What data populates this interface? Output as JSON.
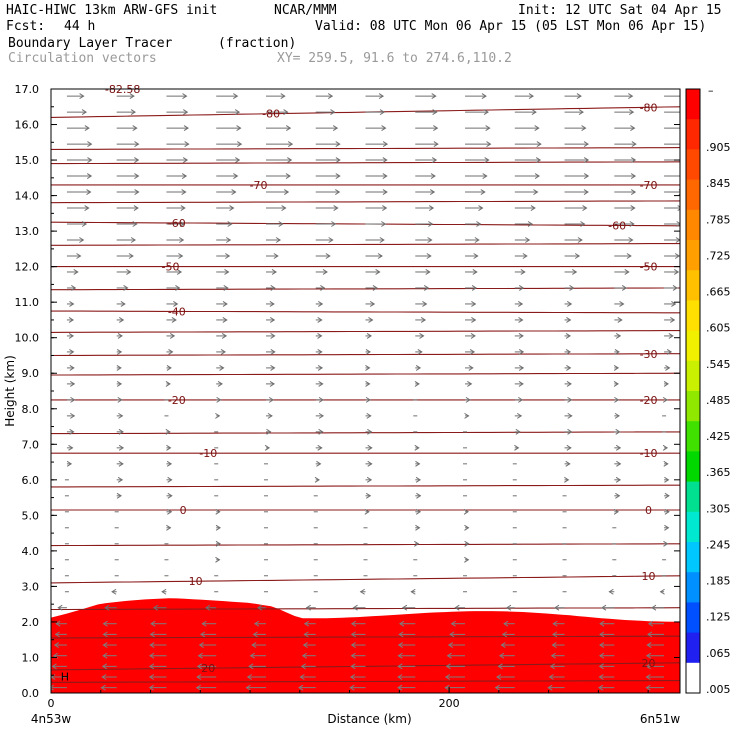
{
  "header": {
    "model": "HAIC-HIWC 13km ARW-GFS init",
    "center": "NCAR/MMM",
    "init": "Init: 12 UTC Sat 04 Apr 15",
    "fcst_label": "Fcst:",
    "fcst_value": "44 h",
    "valid": "Valid: 08 UTC Mon 06 Apr 15 (05 LST Mon 06 Apr 15)",
    "field": "Boundary Layer Tracer",
    "field_units": "(fraction)",
    "vectors": "Circulation vectors",
    "xy": "XY= 259.5, 91.6 to 274.6,110.2"
  },
  "chart_data": {
    "type": "heatmap",
    "xlabel": "Distance (km)",
    "ylabel": "Height (km)",
    "xlim": [
      0,
      316
    ],
    "ylim": [
      0,
      17
    ],
    "x_ticks": [
      {
        "v": 0,
        "label": "0"
      },
      {
        "v": 200,
        "label": "200"
      }
    ],
    "x_end_labels": [
      "4n53w",
      "6n51w"
    ],
    "y_ticks": [
      "0.0",
      "1.0",
      "2.0",
      "3.0",
      "4.0",
      "5.0",
      "6.0",
      "7.0",
      "8.0",
      "9.0",
      "10.0",
      "11.0",
      "12.0",
      "13.0",
      "14.0",
      "15.0",
      "16.0",
      "17.0"
    ],
    "tracer_top_km": [
      [
        0,
        2.15
      ],
      [
        10,
        2.25
      ],
      [
        25,
        2.45
      ],
      [
        60,
        2.6
      ],
      [
        100,
        2.62
      ],
      [
        112,
        2.55
      ],
      [
        125,
        2.25
      ],
      [
        160,
        2.25
      ],
      [
        200,
        2.22
      ],
      [
        260,
        2.2
      ],
      [
        316,
        2.15
      ]
    ],
    "tracer_colors": [
      "#ff0000",
      "#ff3a00",
      "#ff7a00",
      "#ffb800",
      "#fff000",
      "#a8f000",
      "#00e000",
      "#00e8b0",
      "#00b0ff",
      "#0050ff",
      "#2020f0"
    ],
    "temperature_contours": [
      {
        "label": "-80",
        "y": [
          16.2,
          16.5
        ]
      },
      {
        "label": "-70",
        "y": [
          14.3,
          14.3
        ]
      },
      {
        "label": "-60",
        "y": [
          13.25,
          13.15
        ]
      },
      {
        "label": "-50",
        "y": [
          12.0,
          12.0
        ]
      },
      {
        "label": "-40",
        "y": [
          10.75,
          10.7
        ]
      },
      {
        "label": "-30",
        "y": [
          9.5,
          9.55
        ]
      },
      {
        "label": "-20",
        "y": [
          8.25,
          8.25
        ]
      },
      {
        "label": "-10",
        "y": [
          6.75,
          6.75
        ]
      },
      {
        "label": "0",
        "y": [
          5.15,
          5.15
        ]
      },
      {
        "label": "10",
        "y": [
          3.1,
          3.3
        ]
      },
      {
        "label": "20",
        "y": [
          0.65,
          0.85
        ]
      }
    ],
    "unlabeled_contour_levels_km": [
      0.3,
      1.55,
      2.35,
      4.15,
      5.8,
      7.3,
      8.95,
      10.15,
      11.35,
      12.6,
      13.8,
      14.9,
      15.3
    ],
    "top_annotation": "-82.58",
    "high_marker": "H",
    "colorbar": {
      "top_label": "–",
      "labels": [
        ".905",
        ".845",
        ".785",
        ".725",
        ".665",
        ".605",
        ".545",
        ".485",
        ".425",
        ".365",
        ".305",
        ".245",
        ".185",
        ".125",
        ".065",
        ".005"
      ],
      "colors": [
        "#ff0000",
        "#ff2800",
        "#ff4800",
        "#ff6800",
        "#ff8800",
        "#ffa000",
        "#ffc000",
        "#ffe000",
        "#f0f000",
        "#c8f000",
        "#90e800",
        "#40e000",
        "#00d800",
        "#00e090",
        "#00e8d0",
        "#00c8ff",
        "#0090ff",
        "#0050ff",
        "#2020f0",
        "#ffffff"
      ]
    },
    "wind_vectors": {
      "rows_km": [
        0.15,
        0.45,
        0.75,
        1.05,
        1.35,
        1.65,
        1.95,
        2.4,
        2.85,
        3.3,
        3.75,
        4.2,
        4.65,
        5.1,
        5.55,
        6.0,
        6.45,
        6.9,
        7.35,
        7.8,
        8.25,
        8.7,
        9.15,
        9.6,
        10.05,
        10.5,
        10.95,
        11.4,
        11.85,
        12.3,
        12.75,
        13.2,
        13.65,
        14.1,
        14.55,
        15.0,
        15.45,
        15.9,
        16.35,
        16.8
      ],
      "u_profile": [
        [
          0,
          -3
        ],
        [
          2.3,
          -2
        ],
        [
          3.0,
          0
        ],
        [
          5.5,
          0.5
        ],
        [
          9.0,
          1
        ],
        [
          11.0,
          1.5
        ],
        [
          12.5,
          2.5
        ],
        [
          14.0,
          3.5
        ],
        [
          15.5,
          4
        ],
        [
          17.0,
          3
        ]
      ]
    }
  }
}
